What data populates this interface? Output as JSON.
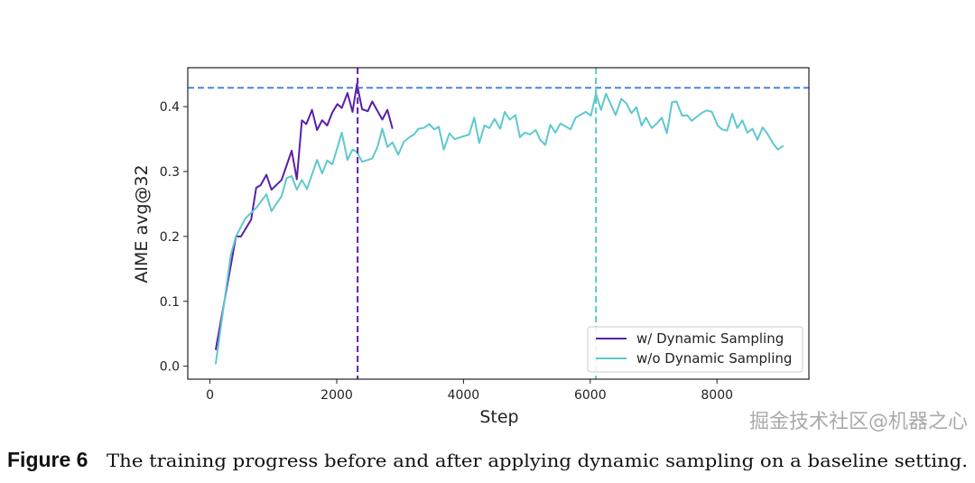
{
  "chart_data": {
    "type": "line",
    "title": "",
    "xlabel": "Step",
    "ylabel": "AIME avg@32",
    "xlim": [
      -350,
      9450
    ],
    "ylim": [
      -0.02,
      0.46
    ],
    "xticks": [
      0,
      2000,
      4000,
      6000,
      8000
    ],
    "xtick_labels": [
      "0",
      "2000",
      "4000",
      "6000",
      "8000"
    ],
    "yticks": [
      0.0,
      0.1,
      0.2,
      0.3,
      0.4
    ],
    "ytick_labels": [
      "0.0",
      "0.1",
      "0.2",
      "0.3",
      "0.4"
    ],
    "grid": false,
    "legend_position": "bottom-right",
    "reference_lines": {
      "horizontal": {
        "y": 0.429,
        "color": "#4a86d8",
        "style": "dashed"
      },
      "vertical": [
        {
          "x": 2330,
          "color": "#5b1fa8",
          "style": "dashed"
        },
        {
          "x": 6090,
          "color": "#5ec8cf",
          "style": "dashed"
        }
      ]
    },
    "series": [
      {
        "name": "w/ Dynamic Sampling",
        "color": "#5b1fa8",
        "x": [
          90,
          410,
          490,
          650,
          730,
          800,
          890,
          970,
          1130,
          1290,
          1370,
          1450,
          1520,
          1610,
          1690,
          1770,
          1850,
          1930,
          2010,
          2080,
          2170,
          2250,
          2320,
          2400,
          2490,
          2560,
          2720,
          2800,
          2880
        ],
        "y": [
          0.025,
          0.2,
          0.2,
          0.226,
          0.275,
          0.279,
          0.295,
          0.272,
          0.287,
          0.332,
          0.288,
          0.379,
          0.373,
          0.395,
          0.364,
          0.379,
          0.371,
          0.391,
          0.404,
          0.398,
          0.421,
          0.392,
          0.435,
          0.396,
          0.393,
          0.408,
          0.38,
          0.395,
          0.366
        ]
      },
      {
        "name": "w/o Dynamic Sampling",
        "color": "#5ec8cf",
        "x": [
          90,
          330,
          410,
          560,
          730,
          890,
          970,
          1130,
          1210,
          1290,
          1370,
          1450,
          1530,
          1690,
          1770,
          1850,
          1930,
          2080,
          2170,
          2250,
          2320,
          2400,
          2560,
          2640,
          2720,
          2800,
          2880,
          2970,
          3060,
          3150,
          3220,
          3290,
          3370,
          3460,
          3540,
          3610,
          3690,
          3780,
          3860,
          4090,
          4170,
          4250,
          4330,
          4410,
          4490,
          4580,
          4650,
          4730,
          4820,
          4890,
          4970,
          5050,
          5140,
          5210,
          5290,
          5370,
          5450,
          5530,
          5690,
          5770,
          5930,
          6010,
          6090,
          6170,
          6250,
          6400,
          6490,
          6570,
          6650,
          6730,
          6810,
          6880,
          6970,
          7050,
          7130,
          7210,
          7290,
          7360,
          7450,
          7530,
          7600,
          7690,
          7770,
          7840,
          7920,
          8010,
          8080,
          8160,
          8240,
          8320,
          8400,
          8480,
          8560,
          8640,
          8720,
          8790,
          8880,
          8960,
          9050
        ],
        "y": [
          0.003,
          0.172,
          0.2,
          0.228,
          0.244,
          0.265,
          0.239,
          0.262,
          0.29,
          0.293,
          0.272,
          0.287,
          0.273,
          0.318,
          0.297,
          0.317,
          0.311,
          0.36,
          0.318,
          0.334,
          0.33,
          0.315,
          0.32,
          0.337,
          0.366,
          0.338,
          0.345,
          0.326,
          0.346,
          0.353,
          0.357,
          0.366,
          0.367,
          0.373,
          0.365,
          0.369,
          0.334,
          0.359,
          0.35,
          0.357,
          0.383,
          0.344,
          0.371,
          0.367,
          0.381,
          0.366,
          0.392,
          0.38,
          0.387,
          0.353,
          0.36,
          0.357,
          0.364,
          0.349,
          0.341,
          0.372,
          0.36,
          0.374,
          0.365,
          0.383,
          0.392,
          0.386,
          0.42,
          0.395,
          0.42,
          0.387,
          0.412,
          0.405,
          0.39,
          0.399,
          0.371,
          0.383,
          0.367,
          0.374,
          0.383,
          0.359,
          0.407,
          0.408,
          0.386,
          0.387,
          0.378,
          0.385,
          0.391,
          0.394,
          0.392,
          0.371,
          0.365,
          0.363,
          0.389,
          0.367,
          0.379,
          0.36,
          0.366,
          0.349,
          0.368,
          0.359,
          0.344,
          0.334,
          0.34
        ]
      }
    ]
  },
  "caption": {
    "label": "Figure 6",
    "text": "The training progress before and after applying dynamic sampling on a baseline setting."
  },
  "watermark": "掘金技术社区@机器之心"
}
